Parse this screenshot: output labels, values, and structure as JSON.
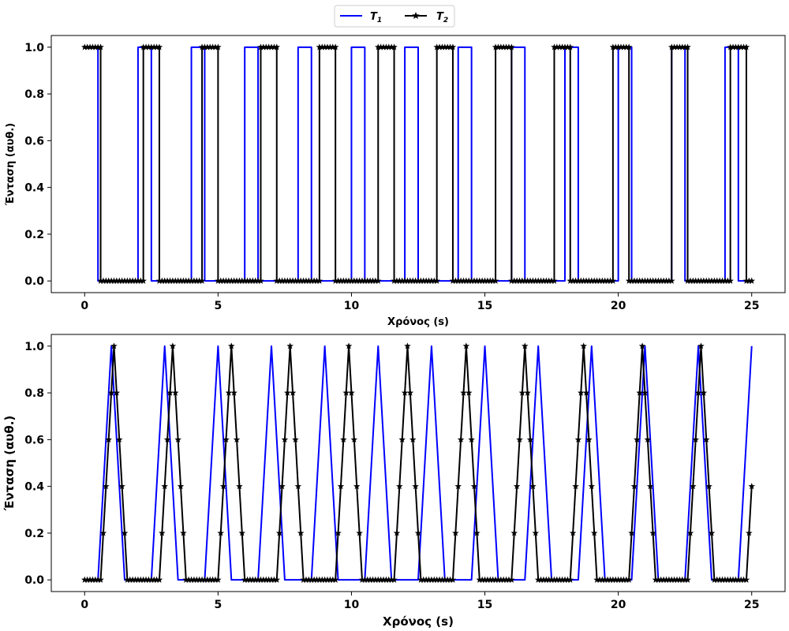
{
  "legend": {
    "placement": "top-center",
    "entries": [
      {
        "label": "T",
        "sub": "1",
        "color": "#0000ff",
        "marker": "none"
      },
      {
        "label": "T",
        "sub": "2",
        "color": "#000000",
        "marker": "star"
      }
    ]
  },
  "chart_data": [
    {
      "type": "line",
      "xlabel": "Χρόνος (s)",
      "ylabel": "Ένταση (αυθ.)",
      "xlim": [
        -1.25,
        26.25
      ],
      "ylim": [
        -0.05,
        1.05
      ],
      "xticks": [
        0,
        5,
        10,
        15,
        20,
        25
      ],
      "yticks": [
        0.0,
        0.2,
        0.4,
        0.6,
        0.8,
        1.0
      ],
      "ytick_labels": [
        "0.0",
        "0.2",
        "0.4",
        "0.6",
        "0.8",
        "1.0"
      ],
      "grid": false,
      "series": [
        {
          "name": "T1",
          "color": "#0000ff",
          "marker": "none",
          "pulses": [
            [
              0,
              0.5
            ],
            [
              2,
              2.5
            ],
            [
              4,
              4.5
            ],
            [
              6,
              6.5
            ],
            [
              8,
              8.5
            ],
            [
              10,
              10.5
            ],
            [
              12,
              12.5
            ],
            [
              14,
              14.5
            ],
            [
              16,
              16.5
            ],
            [
              18,
              18.5
            ],
            [
              20,
              20.5
            ],
            [
              22,
              22.5
            ],
            [
              24,
              24.5
            ]
          ]
        },
        {
          "name": "T2",
          "color": "#000000",
          "marker": "star",
          "pulses": [
            [
              0,
              0.6
            ],
            [
              2.2,
              2.8
            ],
            [
              4.4,
              5.0
            ],
            [
              6.6,
              7.2
            ],
            [
              8.8,
              9.4
            ],
            [
              11.0,
              11.6
            ],
            [
              13.2,
              13.8
            ],
            [
              15.4,
              16.0
            ],
            [
              17.6,
              18.2
            ],
            [
              19.8,
              20.4
            ],
            [
              22.0,
              22.6
            ],
            [
              24.2,
              24.8
            ]
          ]
        }
      ]
    },
    {
      "type": "line",
      "xlabel": "Χρόνος (s)",
      "ylabel": "Ένταση (αυθ.)",
      "xlim": [
        -1.25,
        26.25
      ],
      "ylim": [
        -0.05,
        1.05
      ],
      "xticks": [
        0,
        5,
        10,
        15,
        20,
        25
      ],
      "yticks": [
        0.0,
        0.2,
        0.4,
        0.6,
        0.8,
        1.0
      ],
      "ytick_labels": [
        "0.0",
        "0.2",
        "0.4",
        "0.6",
        "0.8",
        "1.0"
      ],
      "grid": false,
      "series": [
        {
          "name": "T1",
          "color": "#0000ff",
          "marker": "none",
          "triangles": [
            [
              0.5,
              1.0,
              1.5
            ],
            [
              2.5,
              3.0,
              3.5
            ],
            [
              4.5,
              5.0,
              5.5
            ],
            [
              6.5,
              7.0,
              7.5
            ],
            [
              8.5,
              9.0,
              9.5
            ],
            [
              10.5,
              11.0,
              11.5
            ],
            [
              12.5,
              13.0,
              13.5
            ],
            [
              14.5,
              15.0,
              15.5
            ],
            [
              16.5,
              17.0,
              17.5
            ],
            [
              18.5,
              19.0,
              19.5
            ],
            [
              20.5,
              21.0,
              21.5
            ],
            [
              22.5,
              23.0,
              23.5
            ],
            [
              24.5,
              25.0,
              25.5
            ]
          ],
          "end_x": 25.0
        },
        {
          "name": "T2",
          "color": "#000000",
          "marker": "star",
          "triangles": [
            [
              0.6,
              1.1,
              1.6
            ],
            [
              2.8,
              3.3,
              3.8
            ],
            [
              5.0,
              5.5,
              6.0
            ],
            [
              7.2,
              7.7,
              8.2
            ],
            [
              9.4,
              9.9,
              10.4
            ],
            [
              11.6,
              12.1,
              12.6
            ],
            [
              13.8,
              14.3,
              14.8
            ],
            [
              16.0,
              16.5,
              17.0
            ],
            [
              18.2,
              18.7,
              19.2
            ],
            [
              20.4,
              20.9,
              21.4
            ],
            [
              22.6,
              23.1,
              23.6
            ],
            [
              24.8,
              25.3,
              25.8
            ]
          ],
          "end_x": 25.0
        }
      ]
    }
  ]
}
